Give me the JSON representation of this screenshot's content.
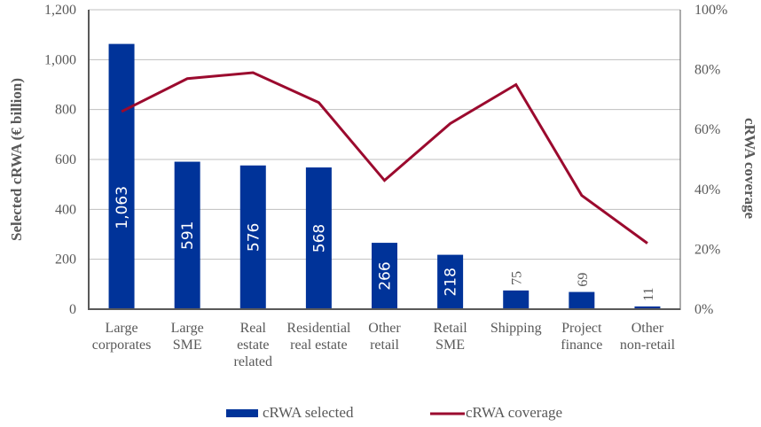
{
  "chart_data": {
    "type": "bar",
    "title": "",
    "categories": [
      [
        "Large",
        "corporates"
      ],
      [
        "Large",
        "SME"
      ],
      [
        "Real",
        "estate",
        "related"
      ],
      [
        "Residential",
        "real estate"
      ],
      [
        "Other",
        "retail"
      ],
      [
        "Retail",
        "SME"
      ],
      [
        "Shipping"
      ],
      [
        "Project",
        "finance"
      ],
      [
        "Other",
        "non-retail"
      ]
    ],
    "series": [
      {
        "name": "cRWA selected",
        "type": "bar",
        "axis": "left",
        "color": "#003399",
        "values": [
          1063,
          591,
          576,
          568,
          266,
          218,
          75,
          69,
          11
        ],
        "labels": [
          "1,063",
          "591",
          "576",
          "568",
          "266",
          "218",
          "75",
          "69",
          "11"
        ]
      },
      {
        "name": "cRWA coverage",
        "type": "line",
        "axis": "right",
        "color": "#9b0a2e",
        "values": [
          0.66,
          0.77,
          0.79,
          0.69,
          0.43,
          0.62,
          0.75,
          0.38,
          0.22
        ]
      }
    ],
    "ylabel": "Selected cRWA (€ billion)",
    "y2label": "cRWA coverage",
    "ylim": [
      0,
      1200
    ],
    "yticks": [
      0,
      200,
      400,
      600,
      800,
      1000,
      1200
    ],
    "ytick_labels": [
      "0",
      "200",
      "400",
      "600",
      "800",
      "1,000",
      "1,200"
    ],
    "y2lim": [
      0,
      1
    ],
    "y2ticks": [
      0,
      0.2,
      0.4,
      0.6,
      0.8,
      1.0
    ],
    "y2tick_labels": [
      "0%",
      "20%",
      "40%",
      "60%",
      "80%",
      "100%"
    ],
    "grid": true,
    "legend_position": "bottom-center",
    "legend": [
      "cRWA selected",
      "cRWA coverage"
    ]
  }
}
